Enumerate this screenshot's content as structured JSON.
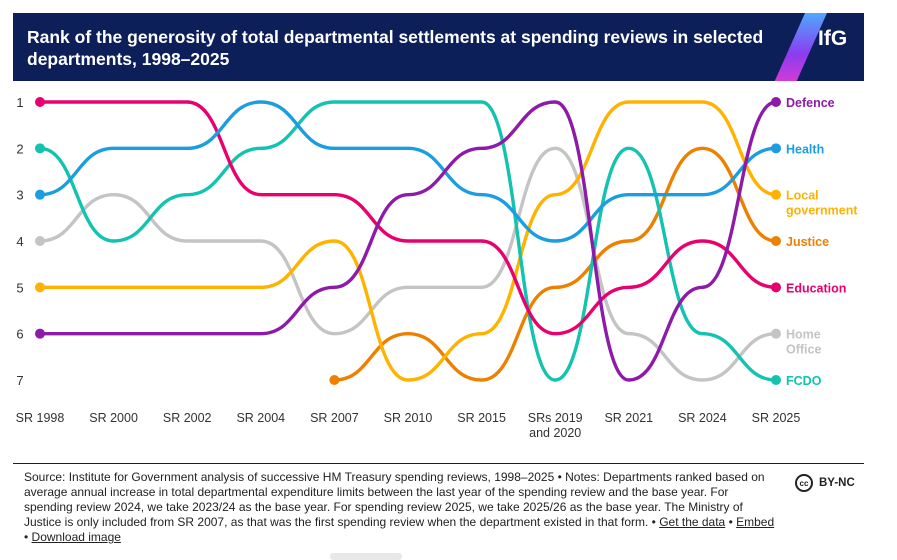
{
  "header": {
    "title": "Rank of the generosity of total departmental settlements at spending reviews in selected departments, 1998–2025",
    "logo": "IfG"
  },
  "footer": {
    "text": "Source: Institute for Government analysis of successive HM Treasury spending reviews, 1998–2025 • Notes: Departments ranked based on average annual increase in total departmental expenditure limits between the last year of the spending review and the base year. For spending review 2024, we take 2023/24 as the base year. For spending review 2025, we take 2025/26 as the base year. The Ministry of Justice is only included from SR 2007, as that was the first spending review when the department existed in that form. • ",
    "links": [
      "Get the data",
      "Embed",
      "Download image"
    ],
    "license": "BY-NC",
    "cc_glyph": "cc"
  },
  "chart_data": {
    "type": "line",
    "chart_subtype": "bump",
    "categories": [
      "SR 1998",
      "SR 2000",
      "SR 2002",
      "SR 2004",
      "SR 2007",
      "SR 2010",
      "SR 2015",
      "SRs 2019 and 2020",
      "SR 2021",
      "SR 2024",
      "SR 2025"
    ],
    "category_labels": [
      [
        "SR 1998"
      ],
      [
        "SR 2000"
      ],
      [
        "SR 2002"
      ],
      [
        "SR 2004"
      ],
      [
        "SR 2007"
      ],
      [
        "SR 2010"
      ],
      [
        "SR 2015"
      ],
      [
        "SRs 2019",
        "and 2020"
      ],
      [
        "SR 2021"
      ],
      [
        "SR 2024"
      ],
      [
        "SR 2025"
      ]
    ],
    "y_ticks": [
      1,
      2,
      3,
      4,
      5,
      6,
      7
    ],
    "ylim": [
      1,
      7
    ],
    "y_inverted": true,
    "grid": false,
    "legend": "direct labels at right end of lines",
    "series": [
      {
        "name": "Defence",
        "label_lines": [
          "Defence"
        ],
        "color": "#8e1aa8",
        "values": [
          6,
          6,
          6,
          6,
          5,
          3,
          2,
          1,
          7,
          5,
          1
        ]
      },
      {
        "name": "Health",
        "label_lines": [
          "Health"
        ],
        "color": "#1a9ee0",
        "values": [
          3,
          2,
          2,
          1,
          2,
          2,
          3,
          4,
          3,
          3,
          2
        ]
      },
      {
        "name": "Local government",
        "label_lines": [
          "Local",
          "government"
        ],
        "color": "#ffb300",
        "values": [
          5,
          5,
          5,
          5,
          4,
          7,
          6,
          3,
          1,
          1,
          3
        ]
      },
      {
        "name": "Justice",
        "label_lines": [
          "Justice"
        ],
        "color": "#ee8000",
        "values": [
          null,
          null,
          null,
          null,
          7,
          6,
          7,
          5,
          4,
          2,
          4
        ]
      },
      {
        "name": "Education",
        "label_lines": [
          "Education"
        ],
        "color": "#e8006f",
        "values": [
          1,
          1,
          1,
          3,
          3,
          4,
          4,
          6,
          5,
          4,
          5
        ]
      },
      {
        "name": "Home Office",
        "label_lines": [
          "Home",
          "Office"
        ],
        "color": "#c4c4c4",
        "values": [
          4,
          3,
          4,
          4,
          6,
          5,
          5,
          2,
          6,
          7,
          6
        ]
      },
      {
        "name": "FCDO",
        "label_lines": [
          "FCDO"
        ],
        "color": "#14c2b0",
        "values": [
          2,
          4,
          3,
          2,
          1,
          1,
          1,
          7,
          2,
          6,
          7
        ]
      }
    ],
    "draw_order": [
      "Home Office",
      "Justice",
      "Local government",
      "FCDO",
      "Education",
      "Health",
      "Defence"
    ]
  }
}
